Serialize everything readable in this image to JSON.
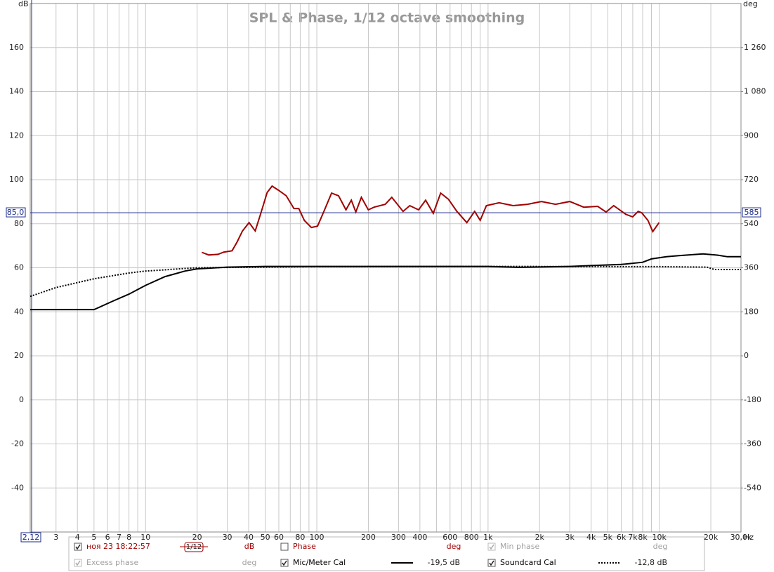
{
  "chart_data": {
    "type": "line",
    "title": "SPL & Phase, 1/12 octave smoothing",
    "y_label": "dB",
    "y2_label": "deg",
    "x_label": "Hz",
    "xscale": "log",
    "xlim": [
      2.12,
      30000
    ],
    "xticks": [
      {
        "value": 2.12,
        "label": "2,12"
      },
      3,
      4,
      5,
      6,
      7,
      8,
      10,
      20,
      30,
      40,
      50,
      60,
      80,
      100,
      200,
      300,
      400,
      600,
      800,
      {
        "value": 1000,
        "label": "1k"
      },
      {
        "value": 2000,
        "label": "2k"
      },
      {
        "value": 3000,
        "label": "3k"
      },
      {
        "value": 4000,
        "label": "4k"
      },
      {
        "value": 5000,
        "label": "5k"
      },
      {
        "value": 6000,
        "label": "6k"
      },
      {
        "value": 7000,
        "label": "7k"
      },
      {
        "value": 8000,
        "label": "8k"
      },
      {
        "value": 10000,
        "label": "10k"
      },
      {
        "value": 20000,
        "label": "20k"
      },
      {
        "value": 30000,
        "label": "30,0k"
      }
    ],
    "xgrid_minor": [
      9,
      70,
      90,
      500,
      700,
      900,
      9000
    ],
    "ylim": [
      -60,
      180
    ],
    "yticks": [
      -40,
      -20,
      0,
      20,
      40,
      60,
      80,
      100,
      120,
      140,
      160
    ],
    "y2lim": [
      -720,
      1440
    ],
    "y2ticks": [
      -540,
      -360,
      -180,
      0,
      180,
      360,
      540,
      720,
      900,
      {
        "value": 1080,
        "label": "1 080"
      },
      {
        "value": 1260,
        "label": "1 260"
      }
    ],
    "grid": true,
    "marker": {
      "value": 85,
      "label": "85,0",
      "y2_label": "585"
    },
    "series": [
      {
        "name": "ноя 23 18:22:57",
        "color": "#a00000",
        "style": "solid",
        "checked": true,
        "unit": "dB",
        "smoothing": "1/12",
        "x": [
          21.3,
          23.4,
          26.5,
          28.6,
          32,
          34.2,
          36.8,
          40.2,
          43.7,
          47.1,
          51.3,
          54.8,
          59.8,
          66.3,
          73.5,
          78.5,
          84.6,
          92.9,
          101,
          111,
          122,
          134,
          148,
          159,
          169,
          182,
          200,
          216,
          251,
          274,
          319,
          349,
          393,
          432,
          479,
          529,
          587,
          658,
          752,
          835,
          900,
          978,
          1160,
          1400,
          1700,
          2050,
          2480,
          3000,
          3620,
          4370,
          4890,
          5420,
          6370,
          6990,
          7530,
          7890,
          8580,
          9160,
          9970
        ],
        "values": [
          67,
          65.8,
          66.1,
          67.1,
          67.7,
          71.6,
          76.7,
          80.5,
          76.7,
          84.7,
          94.2,
          97.1,
          95.2,
          92.7,
          86.9,
          86.9,
          81.5,
          78.3,
          78.9,
          86.3,
          93.9,
          92.7,
          86.3,
          90.7,
          85.3,
          92,
          86.3,
          87.5,
          88.8,
          92,
          85.6,
          88.2,
          86.3,
          90.7,
          84.7,
          93.9,
          91.1,
          85.6,
          80.5,
          85.6,
          81.5,
          88.2,
          89.5,
          88.2,
          88.8,
          90.1,
          88.8,
          90.1,
          87.5,
          87.9,
          85.3,
          88.2,
          84.3,
          83.1,
          85.6,
          85,
          81.5,
          76.4,
          80.5
        ]
      },
      {
        "name": "Mic/Meter Cal",
        "color": "#000000",
        "style": "solid",
        "checked": true,
        "offset_label": "-19,5 dB",
        "x": [
          2.12,
          5,
          6.5,
          8,
          10,
          13,
          17,
          20,
          30,
          50,
          100,
          1000,
          1500,
          3000,
          4000,
          6000,
          8000,
          9000,
          11000,
          13000,
          18000,
          22000,
          25000,
          30000
        ],
        "values": [
          41,
          41,
          45,
          48,
          52,
          56,
          58.5,
          59.5,
          60.3,
          60.6,
          60.6,
          60.6,
          60.2,
          60.6,
          61,
          61.5,
          62.5,
          64,
          65,
          65.5,
          66.3,
          65.7,
          65,
          65
        ]
      },
      {
        "name": "Soundcard Cal",
        "color": "#000000",
        "style": "dotted",
        "checked": true,
        "offset_label": "-12,8 dB",
        "x": [
          2.12,
          3,
          5,
          8,
          10,
          20,
          100,
          1000,
          10000,
          19000,
          21000,
          30000
        ],
        "values": [
          47,
          51,
          55,
          57.6,
          58.5,
          60,
          60.5,
          60.6,
          60.5,
          60.3,
          59.2,
          59.2
        ]
      }
    ],
    "legend_extra": [
      {
        "name": "Phase",
        "unit": "deg",
        "color": "#a00000",
        "checked": false
      },
      {
        "name": "Min phase",
        "unit": "deg",
        "color": "#a0a0a0",
        "checked": true
      },
      {
        "name": "Excess phase",
        "unit": "deg",
        "color": "#a0a0a0",
        "checked": true
      }
    ]
  }
}
